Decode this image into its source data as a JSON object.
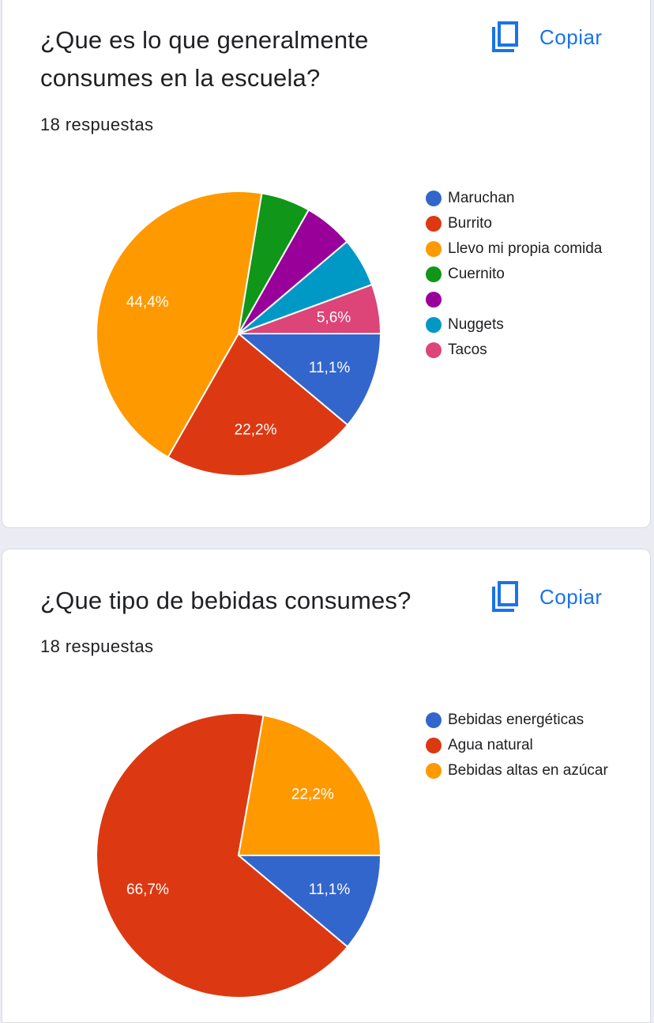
{
  "charts": [
    {
      "title_line1": "¿Que es lo que generalmente",
      "title_line2": "consumes en la escuela?",
      "responses": "18 respuestas",
      "copy_label": "Copiar"
    },
    {
      "title_line1": "¿Que tipo de bebidas consumes?",
      "title_line2": "",
      "responses": "18 respuestas",
      "copy_label": "Copiar"
    }
  ],
  "chart_data": [
    {
      "type": "pie",
      "title": "¿Que es lo que generalmente consumes en la escuela?",
      "series": [
        {
          "name": "Maruchan",
          "value": 11.1,
          "label": "11,1%",
          "color": "#3366cc"
        },
        {
          "name": "Burrito",
          "value": 22.2,
          "label": "22,2%",
          "color": "#dc3912"
        },
        {
          "name": "Llevo mi propia comida",
          "value": 44.4,
          "label": "44,4%",
          "color": "#ff9900"
        },
        {
          "name": "Cuernito",
          "value": 5.6,
          "label": "",
          "color": "#109618"
        },
        {
          "name": "",
          "value": 5.6,
          "label": "",
          "color": "#990099"
        },
        {
          "name": "Nuggets",
          "value": 5.6,
          "label": "",
          "color": "#0099c6"
        },
        {
          "name": "Tacos",
          "value": 5.6,
          "label": "5,6%",
          "color": "#dd4477"
        }
      ],
      "legend_position": "right"
    },
    {
      "type": "pie",
      "title": "¿Que tipo de bebidas consumes?",
      "series": [
        {
          "name": "Bebidas energéticas",
          "value": 11.1,
          "label": "11,1%",
          "color": "#3366cc"
        },
        {
          "name": "Agua natural",
          "value": 66.7,
          "label": "66,7%",
          "color": "#dc3912"
        },
        {
          "name": "Bebidas altas en azúcar",
          "value": 22.2,
          "label": "22,2%",
          "color": "#ff9900"
        }
      ],
      "legend_position": "right"
    }
  ],
  "icons": {
    "copy": "copy-icon"
  },
  "colors": {
    "accent": "#1a73e8",
    "text": "#202124",
    "background": "#ebebf3"
  }
}
